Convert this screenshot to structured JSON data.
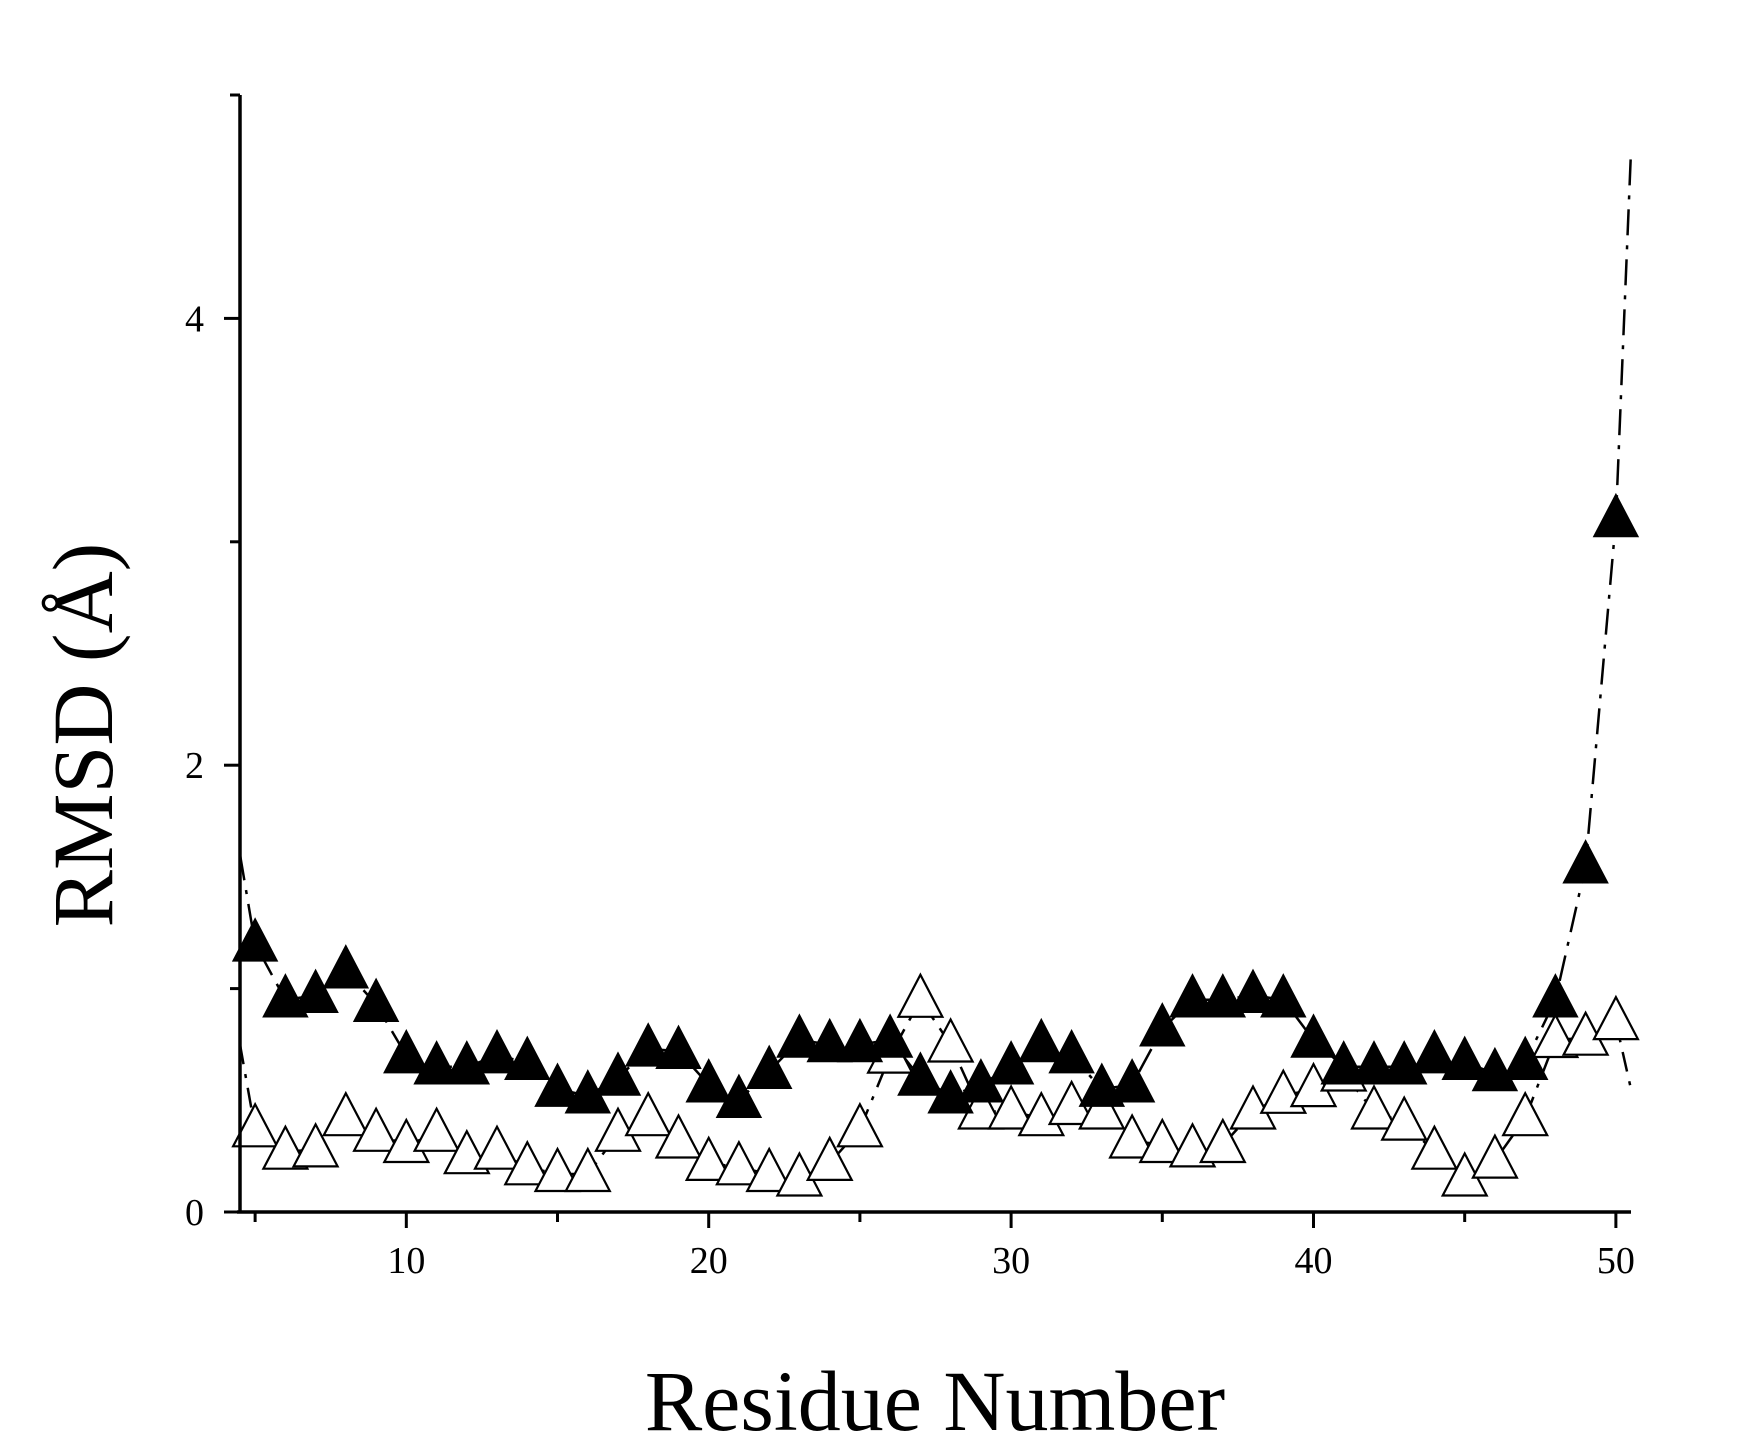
{
  "chart_data": {
    "type": "scatter",
    "title": "",
    "xlabel": "Residue Number",
    "ylabel": "RMSD (Å)",
    "xlim": [
      4.5,
      50.5
    ],
    "ylim": [
      0,
      5
    ],
    "x_ticks": [
      10,
      20,
      30,
      40,
      50
    ],
    "x_tick_labels": [
      "10",
      "20",
      "30",
      "40",
      "50"
    ],
    "y_ticks": [
      0,
      2,
      4
    ],
    "y_tick_labels": [
      "0",
      "2",
      "4"
    ],
    "y_minor_ticks": [
      1,
      3,
      5
    ],
    "grid": false,
    "legend": "none",
    "series": [
      {
        "marker": "filled-triangle",
        "color": "#000000",
        "x": [
          4.5,
          5,
          6,
          7,
          8,
          9,
          10,
          11,
          12,
          13,
          14,
          15,
          16,
          17,
          18,
          19,
          20,
          21,
          22,
          23,
          24,
          25,
          26,
          27,
          28,
          29,
          30,
          31,
          32,
          33,
          34,
          35,
          36,
          37,
          38,
          39,
          40,
          41,
          42,
          43,
          44,
          45,
          46,
          47,
          48,
          49,
          50,
          50.5
        ],
        "y": [
          1.6,
          1.2,
          0.95,
          0.97,
          1.08,
          0.93,
          0.7,
          0.65,
          0.65,
          0.7,
          0.67,
          0.55,
          0.52,
          0.6,
          0.73,
          0.72,
          0.57,
          0.5,
          0.63,
          0.77,
          0.75,
          0.75,
          0.77,
          0.6,
          0.52,
          0.57,
          0.65,
          0.75,
          0.7,
          0.55,
          0.57,
          0.82,
          0.95,
          0.95,
          0.97,
          0.95,
          0.77,
          0.65,
          0.65,
          0.65,
          0.7,
          0.67,
          0.62,
          0.67,
          0.95,
          1.55,
          3.1,
          4.75
        ],
        "show_markers_from_index": 1
      },
      {
        "marker": "hollow-triangle",
        "color": "#000000",
        "x": [
          4.5,
          5,
          6,
          7,
          8,
          9,
          10,
          11,
          12,
          13,
          14,
          15,
          16,
          17,
          18,
          19,
          20,
          21,
          22,
          23,
          24,
          25,
          26,
          27,
          28,
          29,
          30,
          31,
          32,
          33,
          34,
          35,
          36,
          37,
          38,
          39,
          40,
          41,
          42,
          43,
          44,
          45,
          46,
          47,
          48,
          49,
          50,
          50.5
        ],
        "y": [
          0.75,
          0.37,
          0.27,
          0.28,
          0.42,
          0.35,
          0.3,
          0.35,
          0.25,
          0.27,
          0.2,
          0.17,
          0.17,
          0.35,
          0.42,
          0.32,
          0.22,
          0.2,
          0.17,
          0.15,
          0.22,
          0.37,
          0.7,
          0.95,
          0.75,
          0.45,
          0.45,
          0.42,
          0.47,
          0.45,
          0.32,
          0.3,
          0.28,
          0.3,
          0.45,
          0.52,
          0.55,
          0.62,
          0.45,
          0.4,
          0.27,
          0.15,
          0.23,
          0.42,
          0.77,
          0.78,
          0.85,
          0.55
        ],
        "show_markers_from_index": 1
      }
    ]
  }
}
